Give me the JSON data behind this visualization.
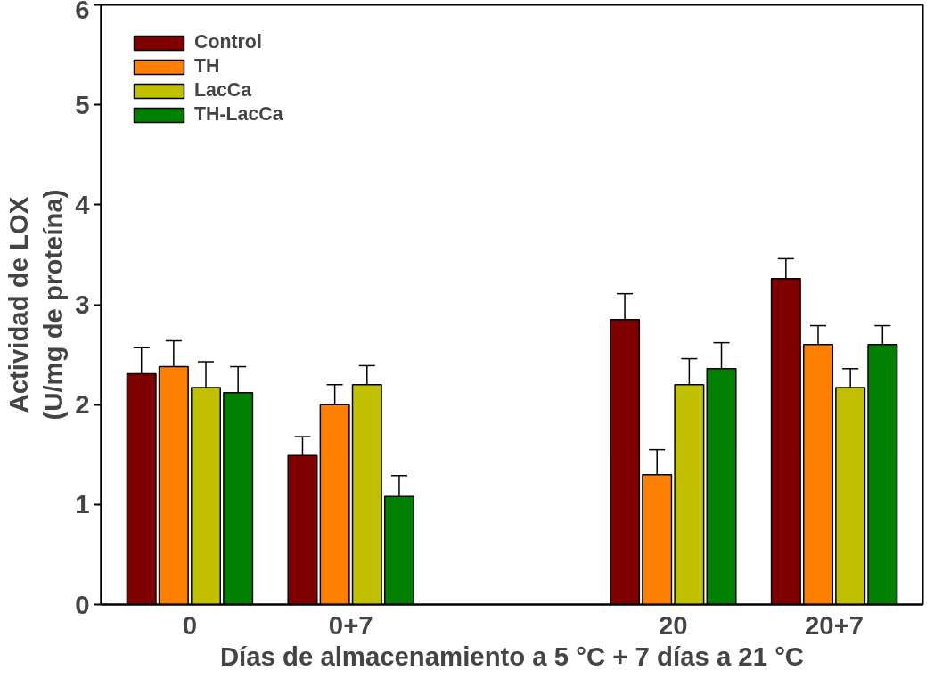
{
  "chart_data": {
    "type": "bar",
    "xlabel": "Días de almacenamiento a 5 °C + 7 días a 21 °C",
    "ylabel": "Actividad de LOX\n(U/mg de proteína)",
    "categories": [
      "0",
      "0+7",
      null,
      "20",
      "20+7"
    ],
    "ylim": [
      0,
      6
    ],
    "yticks": [
      0,
      1,
      2,
      3,
      4,
      5,
      6
    ],
    "grid": false,
    "legend": "top left",
    "series": [
      {
        "name": "Control",
        "color": "#800000",
        "values": [
          2.31,
          1.49,
          null,
          2.85,
          3.26
        ],
        "errors": [
          [
            2.31,
            2.57
          ],
          [
            1.49,
            1.68
          ],
          null,
          [
            2.85,
            3.11
          ],
          [
            3.26,
            3.46
          ]
        ]
      },
      {
        "name": "TH",
        "color": "#ff8000",
        "values": [
          2.38,
          2.0,
          null,
          1.3,
          2.6
        ],
        "errors": [
          [
            2.38,
            2.64
          ],
          [
            2.0,
            2.2
          ],
          null,
          [
            1.3,
            1.55
          ],
          [
            2.6,
            2.79
          ]
        ]
      },
      {
        "name": "LacCa",
        "color": "#c0c000",
        "values": [
          2.17,
          2.2,
          null,
          2.2,
          2.17
        ],
        "errors": [
          [
            2.17,
            2.43
          ],
          [
            2.2,
            2.39
          ],
          null,
          [
            2.2,
            2.46
          ],
          [
            2.17,
            2.36
          ]
        ]
      },
      {
        "name": "TH-LacCa",
        "color": "#008000",
        "values": [
          2.12,
          1.08,
          null,
          2.36,
          2.6
        ],
        "errors": [
          [
            2.12,
            2.38
          ],
          [
            1.08,
            1.29
          ],
          null,
          [
            2.36,
            2.62
          ],
          [
            2.6,
            2.79
          ]
        ]
      }
    ]
  }
}
